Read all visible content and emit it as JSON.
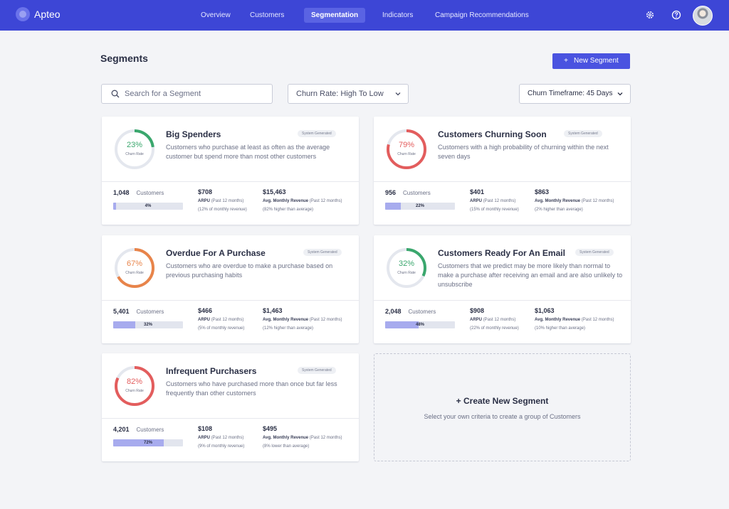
{
  "app": {
    "name": "Apteo"
  },
  "nav": {
    "tabs": [
      {
        "label": "Overview"
      },
      {
        "label": "Customers"
      },
      {
        "label": "Segmentation"
      },
      {
        "label": "Indicators"
      },
      {
        "label": "Campaign Recommendations"
      }
    ],
    "active_tab": "Segmentation",
    "icons": [
      "gear-icon",
      "help-icon",
      "avatar"
    ]
  },
  "page": {
    "title": "Segments",
    "new_button": "New Segment",
    "search_placeholder": "Search for a Segment",
    "sort_value": "Churn Rate: High To Low",
    "timeframe_value": "Churn Timeframe: 45 Days"
  },
  "colors": {
    "nav": "#3d46d6",
    "accent": "#4a53e0",
    "green": "#3aa76d",
    "red": "#e35d5d",
    "orange": "#e8844a",
    "bar_fill": "#a7abee"
  },
  "segments": [
    {
      "title": "Big Spenders",
      "badge": "System Generated",
      "desc": "Customers who purchase at least as often as the average customer but spend more than most other customers",
      "churn_pct": "23%",
      "churn_value": 23,
      "churn_color": "#3aa76d",
      "churn_label": "Churn Rate",
      "count": "1,048",
      "count_unit": "Customers",
      "share_pct": "4%",
      "share_value": 4,
      "arpu": "$708",
      "arpu_label": "ARPU",
      "arpu_sub": "(Past 12 months)",
      "arpu_note": "(12% of monthly revenue)",
      "amr": "$15,463",
      "amr_label": "Avg. Monthly Revenue",
      "amr_sub": "(Past 12 months)",
      "amr_note": "(82% higher than average)"
    },
    {
      "title": "Customers Churning Soon",
      "badge": "System Generated",
      "desc": "Customers with a high probability of churning within the next seven days",
      "churn_pct": "79%",
      "churn_value": 79,
      "churn_color": "#e35d5d",
      "churn_label": "Churn Rate",
      "count": "956",
      "count_unit": "Customers",
      "share_pct": "22%",
      "share_value": 22,
      "arpu": "$401",
      "arpu_label": "ARPU",
      "arpu_sub": "(Past 12 months)",
      "arpu_note": "(15% of monthly revenue)",
      "amr": "$863",
      "amr_label": "Avg. Monthly Revenue",
      "amr_sub": "(Past 12 months)",
      "amr_note": "(2% higher than average)"
    },
    {
      "title": "Overdue For A Purchase",
      "badge": "System Generated",
      "desc": "Customers who are overdue to make a purchase based on previous purchasing habits",
      "churn_pct": "67%",
      "churn_value": 67,
      "churn_color": "#e8844a",
      "churn_label": "Churn Rate",
      "count": "5,401",
      "count_unit": "Customers",
      "share_pct": "32%",
      "share_value": 32,
      "arpu": "$466",
      "arpu_label": "ARPU",
      "arpu_sub": "(Past 12 months)",
      "arpu_note": "(5% of monthly revenue)",
      "amr": "$1,463",
      "amr_label": "Avg. Monthly Revenue",
      "amr_sub": "(Past 12 months)",
      "amr_note": "(12% higher than average)"
    },
    {
      "title": "Customers Ready For An Email",
      "badge": "System Generated",
      "desc": "Customers that we predict may be more likely than normal to make a purchase after receiving an email and are also unlikely to unsubscribe",
      "churn_pct": "32%",
      "churn_value": 32,
      "churn_color": "#3aa76d",
      "churn_label": "Churn Rate",
      "count": "2,048",
      "count_unit": "Customers",
      "share_pct": "48%",
      "share_value": 48,
      "arpu": "$908",
      "arpu_label": "ARPU",
      "arpu_sub": "(Past 12 months)",
      "arpu_note": "(22% of monthly revenue)",
      "amr": "$1,063",
      "amr_label": "Avg. Monthly Revenue",
      "amr_sub": "(Past 12 months)",
      "amr_note": "(10% higher than average)"
    },
    {
      "title": "Infrequent Purchasers",
      "badge": "System Generated",
      "desc": "Customers who have purchased more than once but far less frequently than other customers",
      "churn_pct": "82%",
      "churn_value": 82,
      "churn_color": "#e35d5d",
      "churn_label": "Churn Rate",
      "count": "4,201",
      "count_unit": "Customers",
      "share_pct": "72%",
      "share_value": 72,
      "arpu": "$108",
      "arpu_label": "ARPU",
      "arpu_sub": "(Past 12 months)",
      "arpu_note": "(9% of monthly revenue)",
      "amr": "$495",
      "amr_label": "Avg. Monthly Revenue",
      "amr_sub": "(Past 12 months)",
      "amr_note": "(8% lower than average)"
    }
  ],
  "create_tile": {
    "title": "+ Create New Segment",
    "subtitle": "Select your own criteria to create a group of Customers"
  }
}
